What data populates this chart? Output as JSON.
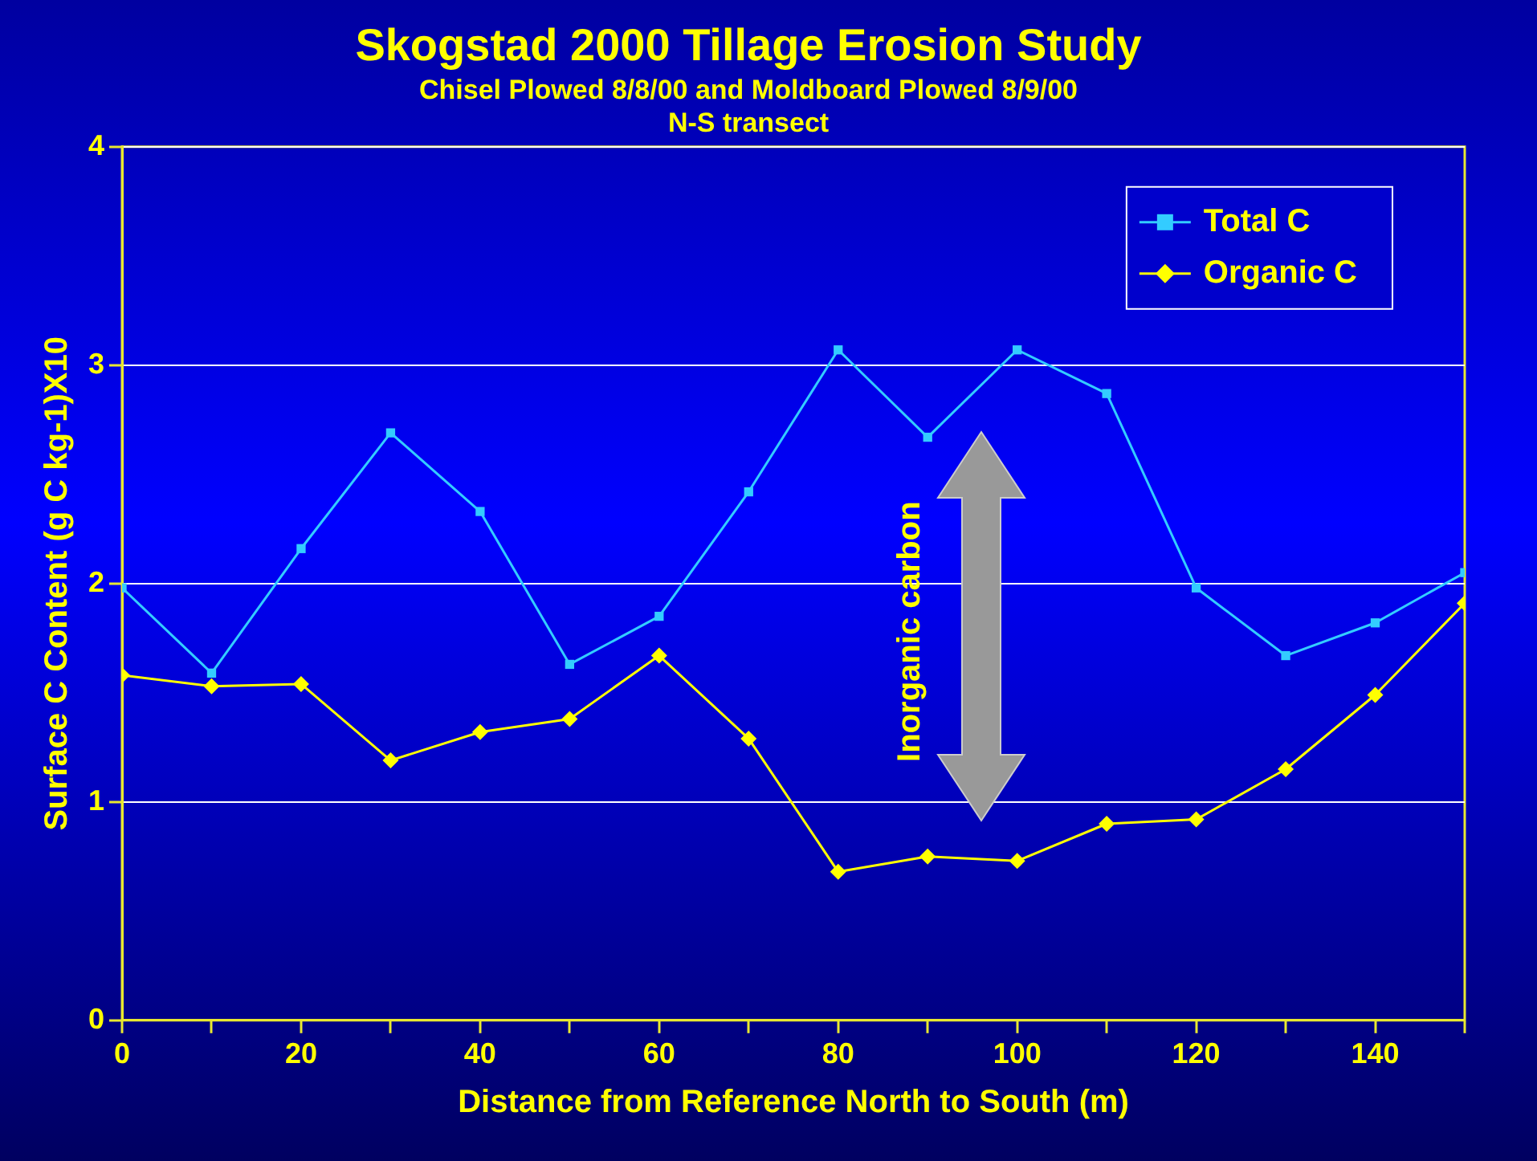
{
  "chart_data": {
    "type": "line",
    "title": "Skogstad 2000 Tillage Erosion Study",
    "subtitle": "Chisel Plowed 8/8/00 and Moldboard Plowed 8/9/00\nN-S transect",
    "xlabel": "Distance from Reference North to South (m)",
    "ylabel": "Surface C Content (g C kg-1)X10",
    "x": [
      0,
      10,
      20,
      30,
      40,
      50,
      60,
      70,
      80,
      90,
      100,
      110,
      120,
      130,
      140,
      150
    ],
    "series": [
      {
        "name": "Total C",
        "color": "#33ccff",
        "marker": "square",
        "values": [
          1.98,
          1.59,
          2.16,
          2.69,
          2.33,
          1.63,
          1.85,
          2.42,
          3.07,
          2.67,
          3.07,
          2.87,
          1.98,
          1.67,
          1.82,
          2.05
        ]
      },
      {
        "name": "Organic C",
        "color": "#ffff00",
        "marker": "diamond",
        "values": [
          1.58,
          1.53,
          1.54,
          1.19,
          1.32,
          1.38,
          1.67,
          1.29,
          0.68,
          0.75,
          0.73,
          0.9,
          0.92,
          1.15,
          1.49,
          1.91
        ]
      }
    ],
    "xlim": [
      0,
      150
    ],
    "xticks": [
      0,
      {
        "value": 10,
        "label": null
      },
      20,
      {
        "value": 30,
        "label": null
      },
      40,
      {
        "value": 50,
        "label": null
      },
      60,
      {
        "value": 70,
        "label": null
      },
      80,
      {
        "value": 90,
        "label": null
      },
      100,
      {
        "value": 110,
        "label": null
      },
      120,
      {
        "value": 130,
        "label": null
      },
      140,
      {
        "value": 150,
        "label": null
      }
    ],
    "ylim": [
      0,
      4
    ],
    "yticks": [
      0,
      1,
      2,
      3,
      4
    ],
    "grid": "y",
    "legend": "top right",
    "annotations": [
      "Inorganic carbon"
    ]
  }
}
